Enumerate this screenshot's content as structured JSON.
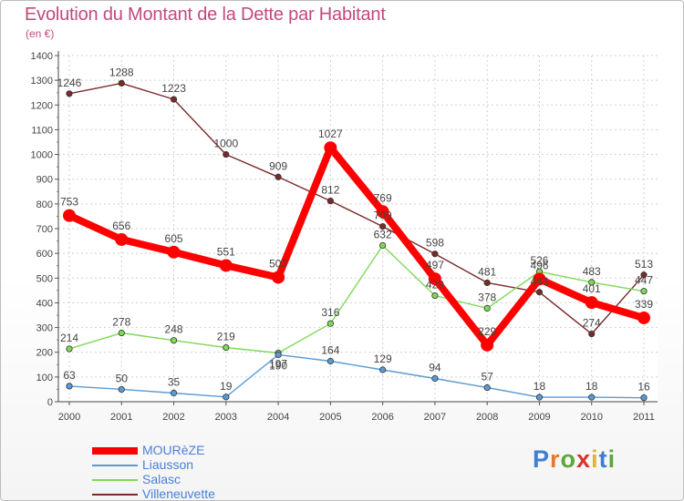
{
  "title": "Evolution du Montant de la Dette par Habitant",
  "subtitle": "(en €)",
  "logo": "Proxiti",
  "chart_data": {
    "type": "line",
    "title": "Evolution du Montant de la Dette par Habitant",
    "ylabel": "(en €)",
    "x": [
      2000,
      2001,
      2002,
      2003,
      2004,
      2005,
      2006,
      2007,
      2008,
      2009,
      2010,
      2011
    ],
    "ylim": [
      0,
      1400
    ],
    "yticks": [
      0,
      100,
      200,
      300,
      400,
      500,
      600,
      700,
      800,
      900,
      1000,
      1100,
      1200,
      1300,
      1400
    ],
    "grid": true,
    "legend_position": "bottom-left",
    "series": [
      {
        "name": "MOURèZE",
        "color": "#ff0000",
        "values": [
          753,
          656,
          605,
          551,
          503,
          1027,
          769,
          497,
          229,
          496,
          401,
          339
        ]
      },
      {
        "name": "Liausson",
        "color": "#5b9bd5",
        "values": [
          63,
          50,
          35,
          19,
          190,
          164,
          129,
          94,
          57,
          18,
          18,
          16
        ]
      },
      {
        "name": "Salasc",
        "color": "#7ed957",
        "values": [
          214,
          278,
          248,
          219,
          197,
          316,
          632,
          429,
          378,
          526,
          483,
          447
        ]
      },
      {
        "name": "Villeneuvette",
        "color": "#7a2a2a",
        "values": [
          1246,
          1288,
          1223,
          1000,
          909,
          812,
          709,
          598,
          481,
          443,
          274,
          513
        ]
      }
    ]
  }
}
